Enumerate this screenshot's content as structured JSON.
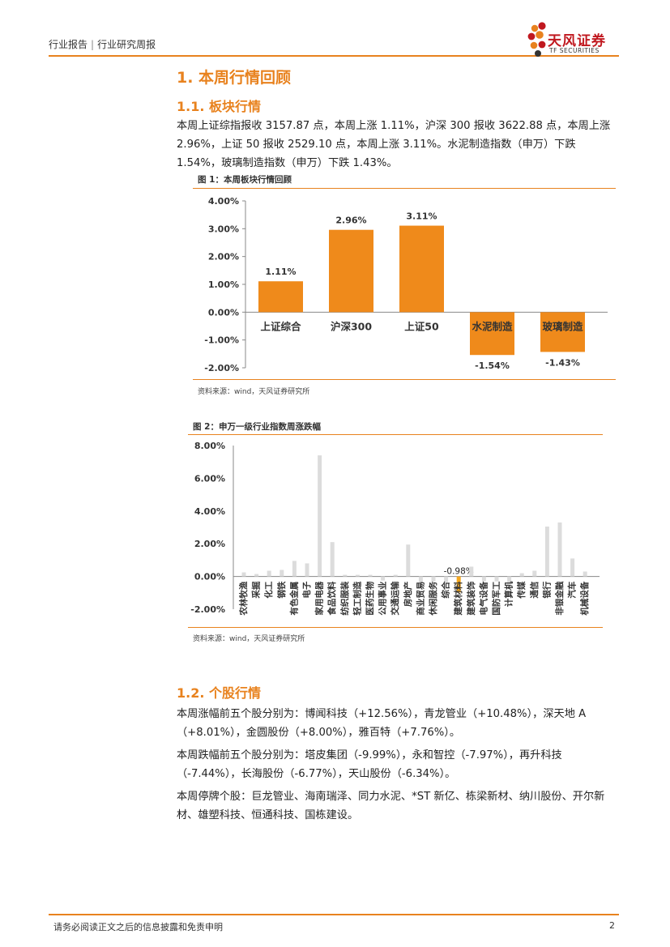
{
  "header": {
    "breadcrumb_left": "行业报告",
    "breadcrumb_right": "行业研究周报",
    "separator": "|"
  },
  "logo": {
    "cn": "天风证券",
    "en": "TF SECURITIES"
  },
  "section1": {
    "title": "1. 本周行情回顾",
    "sub1": "1.1. 板块行情",
    "para": "本周上证综指报收 3157.87 点，本周上涨 1.11%，沪深 300 报收 3622.88 点，本周上涨 2.96%，上证 50 报收 2529.10 点，本周上涨 3.11%。水泥制造指数（申万）下跌 1.54%，玻璃制造指数（申万）下跌 1.43%。"
  },
  "fig1": {
    "title": "图 1：本周板块行情回顾",
    "source": "资料来源：wind，天风证券研究所"
  },
  "fig2": {
    "title": "图 2：申万一级行业指数周涨跌幅",
    "source": "资料来源：wind，天风证券研究所"
  },
  "section2": {
    "sub": "1.2. 个股行情",
    "para1": "本周涨幅前五个股分别为：博闻科技（+12.56%），青龙管业（+10.48%），深天地 A（+8.01%），金圆股份（+8.00%），雅百特（+7.76%）。",
    "para2": "本周跌幅前五个股分别为：塔皮集团（-9.99%），永和智控（-7.97%），再升科技（-7.44%），长海股份（-6.77%），天山股份（-6.34%）。",
    "para3": "本周停牌个股：巨龙管业、海南瑞泽、同力水泥、*ST 新亿、栋梁新材、纳川股份、开尔新材、雄塑科技、恒通科技、国栋建设。"
  },
  "footer": {
    "disclaimer": "请务必阅读正文之后的信息披露和免责申明",
    "page": "2"
  },
  "chart_data": [
    {
      "type": "bar",
      "categories": [
        "上证综合",
        "沪深300",
        "上证50",
        "水泥制造",
        "玻璃制造"
      ],
      "values": [
        1.11,
        2.96,
        3.11,
        -1.54,
        -1.43
      ],
      "data_labels": [
        "1.11%",
        "2.96%",
        "3.11%",
        "-1.54%",
        "-1.43%"
      ],
      "yticks": [
        "4.00%",
        "3.00%",
        "2.00%",
        "1.00%",
        "0.00%",
        "-1.00%",
        "-2.00%"
      ],
      "ylim": [
        -2,
        4
      ],
      "color": "#ef8a1b",
      "grid": false
    },
    {
      "type": "bar",
      "categories": [
        "农林牧渔",
        "采掘",
        "化工",
        "钢铁",
        "有色金属",
        "电子",
        "家用电器",
        "食品饮料",
        "纺织服装",
        "轻工制造",
        "医药生物",
        "公用事业",
        "交通运输",
        "房地产",
        "商业贸易",
        "休闲服务",
        "综合",
        "建筑材料",
        "建筑装饰",
        "电气设备",
        "国防军工",
        "计算机",
        "传媒",
        "通信",
        "银行",
        "非银金融",
        "汽车",
        "机械设备"
      ],
      "values": [
        0.25,
        0.15,
        0.35,
        0.4,
        0.95,
        0.8,
        7.4,
        2.1,
        0.1,
        0.1,
        0.1,
        -0.25,
        0.1,
        1.95,
        -0.4,
        -0.3,
        -0.35,
        -0.98,
        0.6,
        -0.3,
        -0.3,
        -0.5,
        0.2,
        0.35,
        3.05,
        3.3,
        1.1,
        0.3
      ],
      "highlight": {
        "category": "建筑材料",
        "label": "-0.98%",
        "color": "#f5a81e"
      },
      "yticks": [
        "8.00%",
        "6.00%",
        "4.00%",
        "2.00%",
        "0.00%",
        "-2.00%"
      ],
      "ylim": [
        -2,
        8
      ],
      "color": "#dcdcdc",
      "grid": false
    }
  ]
}
